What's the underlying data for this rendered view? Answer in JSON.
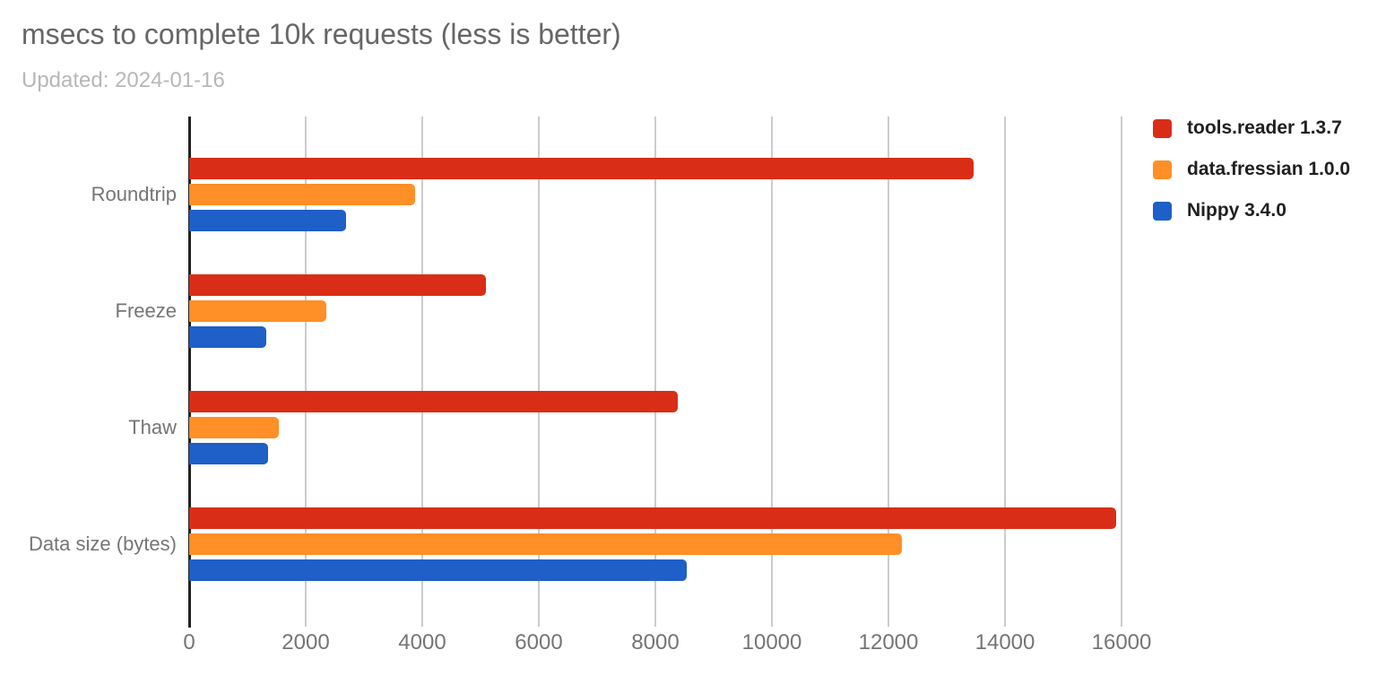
{
  "header": {
    "title": "msecs to complete 10k requests (less is better)",
    "subtitle": "Updated: 2024-01-16"
  },
  "chart_data": {
    "type": "bar",
    "orientation": "horizontal",
    "title": "msecs to complete 10k requests (less is better)",
    "subtitle": "Updated: 2024-01-16",
    "categories": [
      "Roundtrip",
      "Freeze",
      "Thaw",
      "Data size (bytes)"
    ],
    "series": [
      {
        "name": "tools.reader 1.3.7",
        "color": "#da2d17",
        "values": [
          13460,
          5090,
          8390,
          15900
        ]
      },
      {
        "name": "data.fressian 1.0.0",
        "color": "#ff8f26",
        "values": [
          3880,
          2350,
          1540,
          12230
        ]
      },
      {
        "name": "Nippy 3.4.0",
        "color": "#1e5fc8",
        "values": [
          2690,
          1330,
          1360,
          8540
        ]
      }
    ],
    "xlabel": "",
    "ylabel": "",
    "x_ticks": [
      0,
      2000,
      4000,
      6000,
      8000,
      10000,
      12000,
      14000,
      16000
    ],
    "x_tick_labels": [
      "0",
      "2000",
      "4000",
      "6000",
      "8000",
      "10000",
      "12000",
      "14000",
      "16000"
    ],
    "xlim": [
      0,
      17200
    ],
    "grid": true,
    "legend_position": "right"
  },
  "colors": {
    "title_text": "#666666",
    "subtitle_text": "#b7b7b7",
    "axis_label_text": "#757575",
    "gridline": "#cccccc",
    "axis_line": "#212121",
    "legend_text": "#202020",
    "background": "#ffffff"
  }
}
